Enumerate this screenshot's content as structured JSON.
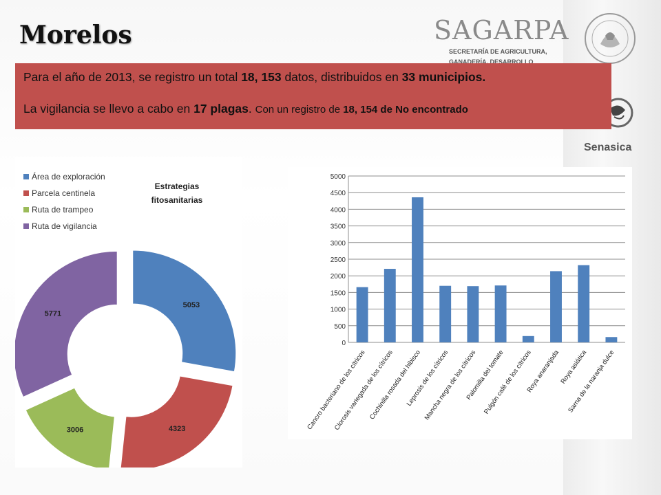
{
  "slide": {
    "title": "Morelos",
    "logo": {
      "name": "SAGARPA",
      "subtitle_lines": [
        "SECRETARÍA DE AGRICULTURA,",
        "GANADERÍA, DESARROLLO RURAL,"
      ]
    },
    "senasica_label": "Senasica"
  },
  "summary": {
    "line1": {
      "part1": "Para el año de 2013,  se registro un total ",
      "bold1": "18, 153",
      "part2": " datos, distribuidos en  ",
      "bold2": "33 municipios."
    },
    "line2": {
      "part1": "La vigilancia se llevo a cabo en ",
      "bold1": "17 plagas",
      "part2": ". ",
      "small1": "Con un registro de ",
      "small_bold": "18, 154 de No encontrado"
    }
  },
  "colors": {
    "accent_box": "#c0504d",
    "blue": "#4f81bd",
    "red": "#c0504d",
    "green": "#9bbb59",
    "purple": "#8064a2"
  },
  "chart_data": [
    {
      "type": "pie",
      "subtype": "doughnut-exploded",
      "title_lines": [
        "Estrategias",
        "fitosanitarias"
      ],
      "legend_position": "top-left",
      "categories": [
        "Área de  exploración",
        "Parcela centinela",
        "Ruta de trampeo",
        "Ruta de vigilancia"
      ],
      "values": [
        5053,
        4323,
        3006,
        5771
      ],
      "colors": [
        "#4f81bd",
        "#c0504d",
        "#9bbb59",
        "#8064a2"
      ]
    },
    {
      "type": "bar",
      "categories": [
        "Cancro bacteriano de los cítricos",
        "Clorosis variegada de los cítricos",
        "Cochinilla rosada del hibisco",
        "Leprosis de los cítricos",
        "Mancha negra de los cítricos",
        "Palomilla del tomate",
        "Pulgón café de los cítricos",
        "Roya anaranjada",
        "Roya asiática",
        "Sarna de la naranja dulce"
      ],
      "values": [
        1660,
        2210,
        4360,
        1700,
        1690,
        1710,
        190,
        2140,
        2320,
        160
      ],
      "ylim": [
        0,
        5000
      ],
      "yticks": [
        0,
        500,
        1000,
        1500,
        2000,
        2500,
        3000,
        3500,
        4000,
        4500,
        5000
      ],
      "grid": true,
      "color": "#4f81bd"
    }
  ]
}
